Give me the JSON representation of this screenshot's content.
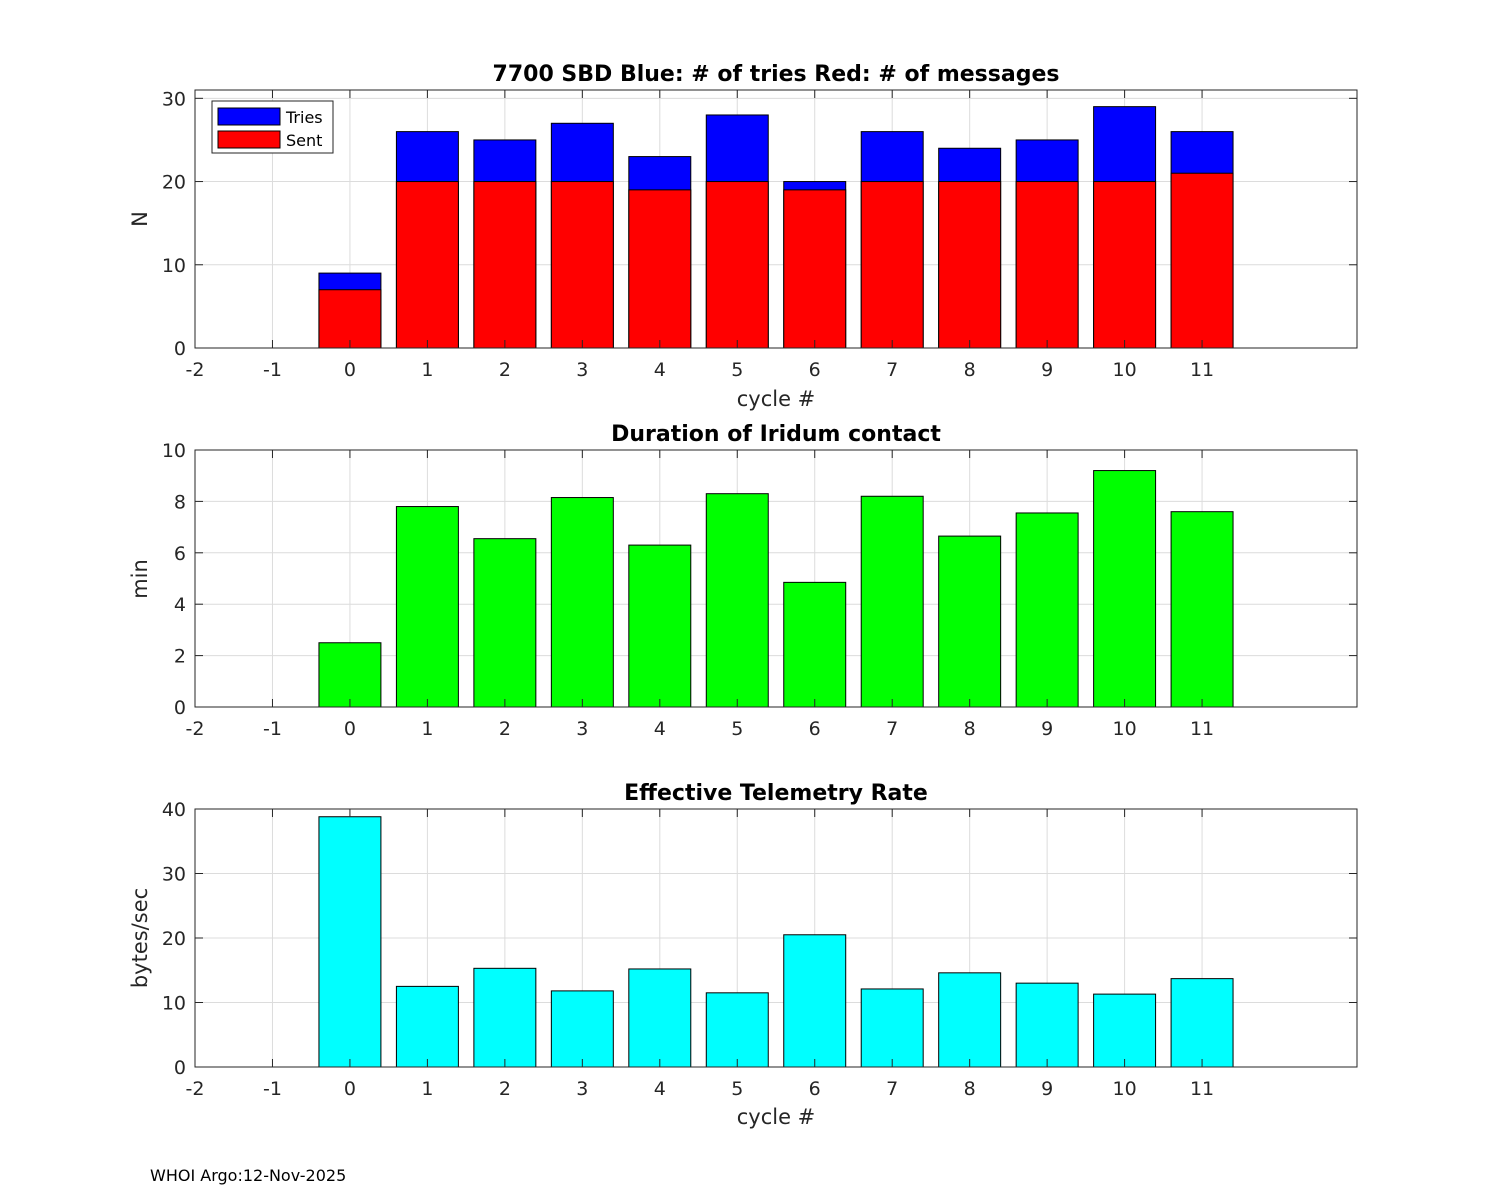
{
  "footer": "WHOI Argo:12-Nov-2025",
  "chart_data": [
    {
      "type": "bar",
      "stacked": "overlay",
      "title": "7700 SBD  Blue: # of tries   Red: # of messages",
      "xlabel": "cycle #",
      "ylabel": "N",
      "xlim": [
        -2,
        13
      ],
      "ylim": [
        0,
        31
      ],
      "xticks": [
        -2,
        -1,
        0,
        1,
        2,
        3,
        4,
        5,
        6,
        7,
        8,
        9,
        10,
        11
      ],
      "yticks": [
        0,
        10,
        20,
        30
      ],
      "categories": [
        0,
        1,
        2,
        3,
        4,
        5,
        6,
        7,
        8,
        9,
        10,
        11
      ],
      "series": [
        {
          "name": "Tries",
          "color": "#0000ff",
          "values": [
            9,
            26,
            25,
            27,
            23,
            28,
            20,
            26,
            24,
            25,
            29,
            26
          ]
        },
        {
          "name": "Sent",
          "color": "#ff0000",
          "values": [
            7,
            20,
            20,
            20,
            19,
            20,
            19,
            20,
            20,
            20,
            20,
            21
          ]
        }
      ],
      "legend": "top-left",
      "grid": true
    },
    {
      "type": "bar",
      "title": "Duration of Iridum contact",
      "xlabel": "",
      "ylabel": "min",
      "xlim": [
        -2,
        13
      ],
      "ylim": [
        0,
        10
      ],
      "xticks": [
        -2,
        -1,
        0,
        1,
        2,
        3,
        4,
        5,
        6,
        7,
        8,
        9,
        10,
        11
      ],
      "yticks": [
        0,
        2,
        4,
        6,
        8,
        10
      ],
      "categories": [
        0,
        1,
        2,
        3,
        4,
        5,
        6,
        7,
        8,
        9,
        10,
        11
      ],
      "series": [
        {
          "name": "Duration",
          "color": "#00ff00",
          "values": [
            2.5,
            7.8,
            6.55,
            8.15,
            6.3,
            8.3,
            4.85,
            8.2,
            6.65,
            7.55,
            9.2,
            7.6
          ]
        }
      ],
      "grid": true
    },
    {
      "type": "bar",
      "title": "Effective Telemetry Rate",
      "xlabel": "cycle #",
      "ylabel": "bytes/sec",
      "xlim": [
        -2,
        13
      ],
      "ylim": [
        0,
        40
      ],
      "xticks": [
        -2,
        -1,
        0,
        1,
        2,
        3,
        4,
        5,
        6,
        7,
        8,
        9,
        10,
        11
      ],
      "yticks": [
        0,
        10,
        20,
        30,
        40
      ],
      "categories": [
        0,
        1,
        2,
        3,
        4,
        5,
        6,
        7,
        8,
        9,
        10,
        11
      ],
      "series": [
        {
          "name": "Rate",
          "color": "#00ffff",
          "values": [
            38.8,
            12.5,
            15.3,
            11.8,
            15.2,
            11.5,
            20.5,
            12.1,
            14.6,
            13.0,
            11.3,
            13.7
          ]
        }
      ],
      "grid": true
    }
  ]
}
